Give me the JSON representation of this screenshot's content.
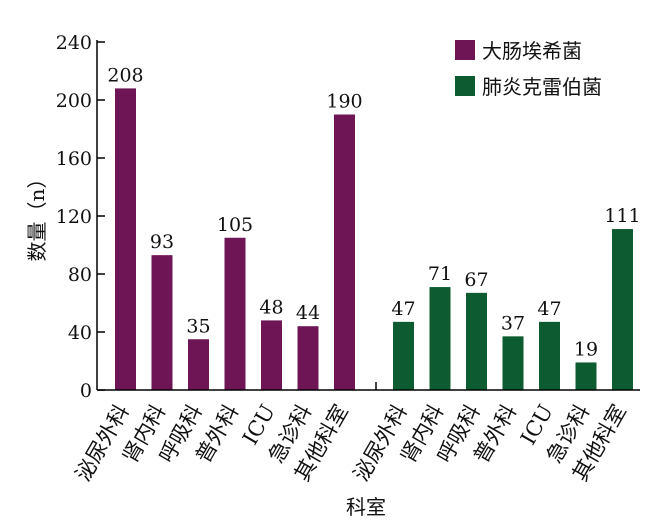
{
  "chart_data": {
    "type": "bar",
    "ylabel": "数量（n）",
    "xlabel": "科室",
    "ylim": [
      0,
      240
    ],
    "yticks": [
      0,
      40,
      80,
      120,
      160,
      200,
      240
    ],
    "grid": false,
    "legend_position": "top-right",
    "groups": [
      {
        "name": "大肠埃希菌",
        "color": "#6e1655",
        "categories": [
          "泌尿外科",
          "肾内科",
          "呼吸科",
          "普外科",
          "ICU",
          "急诊科",
          "其他科室"
        ],
        "values": [
          208,
          93,
          35,
          105,
          48,
          44,
          190
        ]
      },
      {
        "name": "肺炎克雷伯菌",
        "color": "#0d5c31",
        "categories": [
          "泌尿外科",
          "肾内科",
          "呼吸科",
          "普外科",
          "ICU",
          "急诊科",
          "其他科室"
        ],
        "values": [
          47,
          71,
          67,
          37,
          47,
          19,
          111
        ]
      }
    ]
  }
}
